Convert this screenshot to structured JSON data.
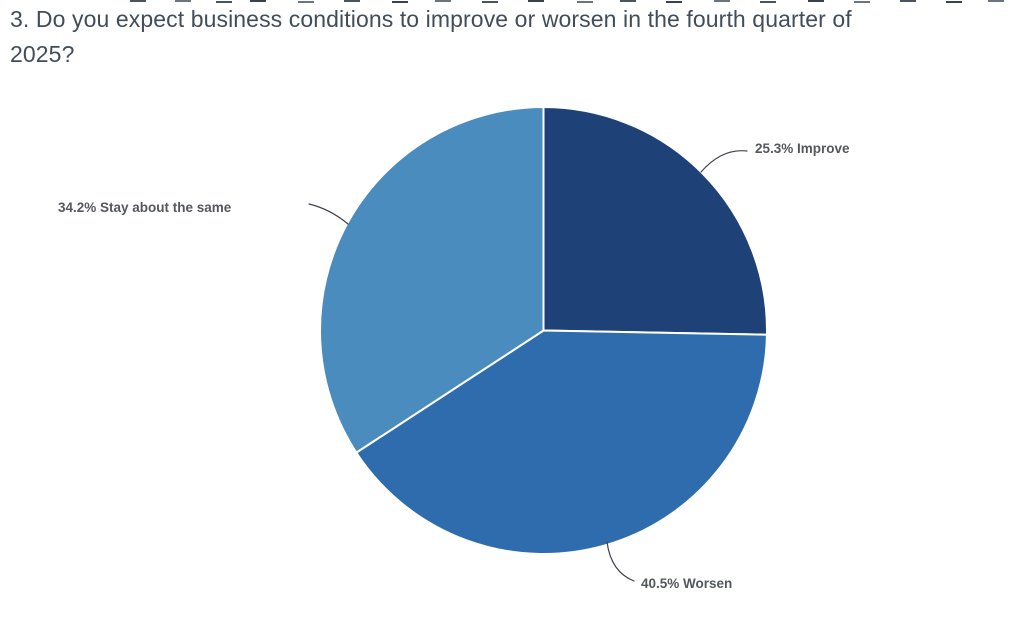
{
  "title": {
    "full": "3. Do you expect business conditions to improve or worsen in the fourth quarter of 2025?",
    "line1": "3. Do you expect business conditions to improve or worsen in the fourth quarter of",
    "line2": "2025?",
    "color": "#424d5c"
  },
  "chart_data": {
    "type": "pie",
    "title": "3. Do you expect business conditions to improve or worsen in the fourth quarter of 2025?",
    "categories": [
      "Improve",
      "Worsen",
      "Stay about the same"
    ],
    "values": [
      25.3,
      40.5,
      34.2
    ],
    "slices": [
      {
        "label": "Improve",
        "value": 25.3,
        "display": "25.3% Improve",
        "color": "#1e4278",
        "slug": "improve"
      },
      {
        "label": "Worsen",
        "value": 40.5,
        "display": "40.5% Worsen",
        "color": "#2e6cae",
        "slug": "worsen"
      },
      {
        "label": "Stay about the same",
        "value": 34.2,
        "display": "34.2% Stay about the same",
        "color": "#4a8cbe",
        "slug": "stay-about-the-same"
      }
    ],
    "start_angle_deg_from_12oclock": 0,
    "direction": "clockwise",
    "separator_color": "#ffffff",
    "leader_line_color": "#3f444b",
    "label_color": "#54585e",
    "legend": "none",
    "grid": false
  }
}
